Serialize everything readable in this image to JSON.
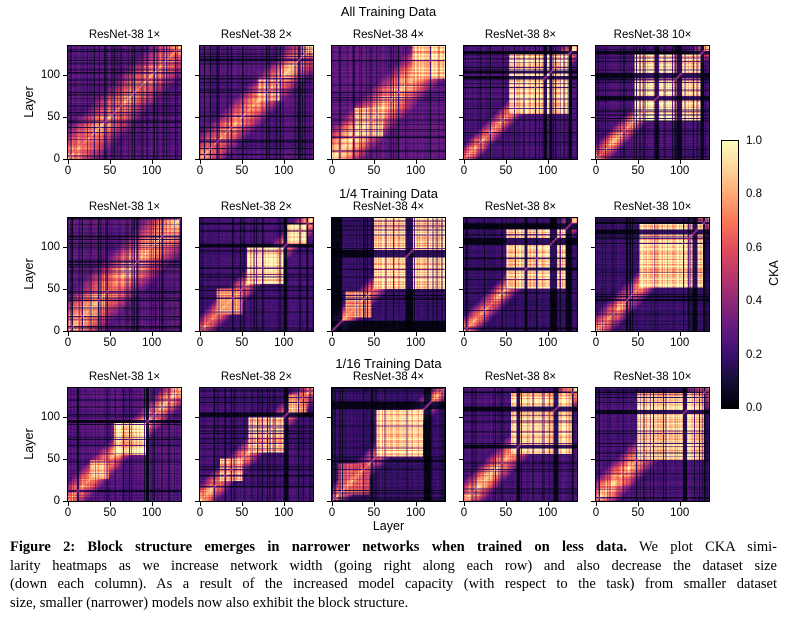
{
  "figure": {
    "row_titles": [
      "All Training Data",
      "1/4 Training Data",
      "1/16 Training Data"
    ],
    "col_titles": [
      "ResNet-38 1×",
      "ResNet-38 2×",
      "ResNet-38 4×",
      "ResNet-38 8×",
      "ResNet-38 10×"
    ],
    "x_axis_label": "Layer",
    "y_axis_label": "Layer",
    "x_ticks": [
      0,
      50,
      100
    ],
    "y_ticks": [
      0,
      50,
      100
    ],
    "n_layers": 135,
    "colorbar": {
      "label": "CKA",
      "ticks": [
        "1.0",
        "0.8",
        "0.6",
        "0.4",
        "0.2",
        "0.0"
      ],
      "min": 0.0,
      "max": 1.0,
      "colormap": "magma",
      "stops": [
        "#000004",
        "#140e36",
        "#3b0f70",
        "#651a80",
        "#8f2878",
        "#bb376b",
        "#e24d5b",
        "#f97858",
        "#fea873",
        "#fed69c",
        "#fcfdbf"
      ]
    }
  },
  "chart_data": [
    {
      "type": "heatmap",
      "row_group": "All Training Data",
      "title": "ResNet-38 1×",
      "x_label": "Layer",
      "y_label": "Layer",
      "x_range": [
        0,
        135
      ],
      "y_range": [
        0,
        135
      ],
      "cka_range": [
        0,
        1
      ],
      "base_cka": 0.3,
      "diag_halo": {
        "sigma": 28,
        "amp": 0.78
      },
      "high_blocks": [
        [
          126,
          134,
          0.9
        ]
      ],
      "dark_layer_bands": [],
      "bright_lines": [],
      "dark_line_freq": 0.14,
      "seed": 11
    },
    {
      "type": "heatmap",
      "row_group": "All Training Data",
      "title": "ResNet-38 2×",
      "x_label": "Layer",
      "y_label": "Layer",
      "x_range": [
        0,
        135
      ],
      "y_range": [
        0,
        135
      ],
      "cka_range": [
        0,
        1
      ],
      "base_cka": 0.28,
      "diag_halo": {
        "sigma": 22,
        "amp": 0.8
      },
      "high_blocks": [
        [
          70,
          96,
          0.9
        ],
        [
          126,
          134,
          0.9
        ]
      ],
      "dark_layer_bands": [],
      "bright_lines": [],
      "dark_line_freq": 0.12,
      "seed": 22
    },
    {
      "type": "heatmap",
      "row_group": "All Training Data",
      "title": "ResNet-38 4×",
      "x_label": "Layer",
      "y_label": "Layer",
      "x_range": [
        0,
        135
      ],
      "y_range": [
        0,
        135
      ],
      "cka_range": [
        0,
        1
      ],
      "base_cka": 0.3,
      "diag_halo": {
        "sigma": 26,
        "amp": 0.88
      },
      "high_blocks": [
        [
          26,
          60,
          0.85
        ],
        [
          96,
          134,
          0.95
        ]
      ],
      "dark_layer_bands": [],
      "bright_lines": [],
      "dark_line_freq": 0.1,
      "seed": 33
    },
    {
      "type": "heatmap",
      "row_group": "All Training Data",
      "title": "ResNet-38 8×",
      "x_label": "Layer",
      "y_label": "Layer",
      "x_range": [
        0,
        135
      ],
      "y_range": [
        0,
        135
      ],
      "cka_range": [
        0,
        1
      ],
      "base_cka": 0.26,
      "diag_halo": {
        "sigma": 12,
        "amp": 0.8
      },
      "high_blocks": [
        [
          54,
          124,
          1.0
        ],
        [
          129,
          134,
          1.0
        ]
      ],
      "dark_layer_bands": [
        [
          95,
          98
        ],
        [
          102,
          104
        ],
        [
          125,
          128
        ]
      ],
      "bright_lines": [
        100
      ],
      "dark_line_freq": 0.13,
      "seed": 44
    },
    {
      "type": "heatmap",
      "row_group": "All Training Data",
      "title": "ResNet-38 10×",
      "x_label": "Layer",
      "y_label": "Layer",
      "x_range": [
        0,
        135
      ],
      "y_range": [
        0,
        135
      ],
      "cka_range": [
        0,
        1
      ],
      "base_cka": 0.26,
      "diag_halo": {
        "sigma": 12,
        "amp": 0.8
      },
      "high_blocks": [
        [
          46,
          124,
          1.0
        ],
        [
          129,
          134,
          1.0
        ]
      ],
      "dark_layer_bands": [
        [
          70,
          73
        ],
        [
          97,
          101
        ],
        [
          125,
          128
        ]
      ],
      "bright_lines": [],
      "dark_line_freq": 0.13,
      "seed": 55
    },
    {
      "type": "heatmap",
      "row_group": "1/4 Training Data",
      "title": "ResNet-38 1×",
      "x_label": "Layer",
      "y_label": "Layer",
      "x_range": [
        0,
        135
      ],
      "y_range": [
        0,
        135
      ],
      "cka_range": [
        0,
        1
      ],
      "base_cka": 0.3,
      "diag_halo": {
        "sigma": 30,
        "amp": 0.85
      },
      "high_blocks": [
        [
          124,
          134,
          0.85
        ]
      ],
      "dark_layer_bands": [],
      "bright_lines": [],
      "dark_line_freq": 0.14,
      "seed": 66
    },
    {
      "type": "heatmap",
      "row_group": "1/4 Training Data",
      "title": "ResNet-38 2×",
      "x_label": "Layer",
      "y_label": "Layer",
      "x_range": [
        0,
        135
      ],
      "y_range": [
        0,
        135
      ],
      "cka_range": [
        0,
        1
      ],
      "base_cka": 0.24,
      "diag_halo": {
        "sigma": 13,
        "amp": 0.8
      },
      "high_blocks": [
        [
          20,
          50,
          0.85
        ],
        [
          56,
          99,
          1.0
        ],
        [
          104,
          126,
          0.95
        ],
        [
          129,
          134,
          0.9
        ]
      ],
      "dark_layer_bands": [
        [
          100,
          103
        ],
        [
          127,
          128
        ]
      ],
      "bright_lines": [],
      "dark_line_freq": 0.12,
      "seed": 77
    },
    {
      "type": "heatmap",
      "row_group": "1/4 Training Data",
      "title": "ResNet-38 4×",
      "x_label": "Layer",
      "y_label": "Layer",
      "x_range": [
        0,
        135
      ],
      "y_range": [
        0,
        135
      ],
      "cka_range": [
        0,
        1
      ],
      "base_cka": 0.21,
      "diag_halo": {
        "sigma": 12,
        "amp": 0.78
      },
      "high_blocks": [
        [
          16,
          46,
          0.8
        ],
        [
          50,
          134,
          1.0
        ]
      ],
      "dark_layer_bands": [
        [
          0,
          11
        ],
        [
          88,
          96
        ]
      ],
      "bright_lines": [],
      "dark_line_freq": 0.12,
      "seed": 88
    },
    {
      "type": "heatmap",
      "row_group": "1/4 Training Data",
      "title": "ResNet-38 8×",
      "x_label": "Layer",
      "y_label": "Layer",
      "x_range": [
        0,
        135
      ],
      "y_range": [
        0,
        135
      ],
      "cka_range": [
        0,
        1
      ],
      "base_cka": 0.21,
      "diag_halo": {
        "sigma": 12,
        "amp": 0.78
      },
      "high_blocks": [
        [
          50,
          121,
          1.0
        ],
        [
          128,
          134,
          0.95
        ]
      ],
      "dark_layer_bands": [
        [
          72,
          75
        ],
        [
          103,
          110
        ],
        [
          122,
          127
        ]
      ],
      "bright_lines": [],
      "dark_line_freq": 0.12,
      "seed": 99
    },
    {
      "type": "heatmap",
      "row_group": "1/4 Training Data",
      "title": "ResNet-38 10×",
      "x_label": "Layer",
      "y_label": "Layer",
      "x_range": [
        0,
        135
      ],
      "y_range": [
        0,
        135
      ],
      "cka_range": [
        0,
        1
      ],
      "base_cka": 0.22,
      "diag_halo": {
        "sigma": 14,
        "amp": 0.8
      },
      "high_blocks": [
        [
          52,
          127,
          1.0
        ],
        [
          130,
          134,
          0.95
        ]
      ],
      "dark_layer_bands": [
        [
          115,
          120
        ],
        [
          128,
          129
        ]
      ],
      "bright_lines": [],
      "dark_line_freq": 0.12,
      "seed": 111
    },
    {
      "type": "heatmap",
      "row_group": "1/16 Training Data",
      "title": "ResNet-38 1×",
      "x_label": "Layer",
      "y_label": "Layer",
      "x_range": [
        0,
        135
      ],
      "y_range": [
        0,
        135
      ],
      "cka_range": [
        0,
        1
      ],
      "base_cka": 0.28,
      "diag_halo": {
        "sigma": 16,
        "amp": 0.8
      },
      "high_blocks": [
        [
          26,
          48,
          0.85
        ],
        [
          55,
          92,
          1.0
        ],
        [
          126,
          134,
          0.8
        ]
      ],
      "dark_layer_bands": [
        [
          93,
          96
        ]
      ],
      "bright_lines": [
        97
      ],
      "dark_line_freq": 0.13,
      "seed": 122
    },
    {
      "type": "heatmap",
      "row_group": "1/16 Training Data",
      "title": "ResNet-38 2×",
      "x_label": "Layer",
      "y_label": "Layer",
      "x_range": [
        0,
        135
      ],
      "y_range": [
        0,
        135
      ],
      "cka_range": [
        0,
        1
      ],
      "base_cka": 0.25,
      "diag_halo": {
        "sigma": 14,
        "amp": 0.8
      },
      "high_blocks": [
        [
          24,
          50,
          0.9
        ],
        [
          58,
          100,
          1.0
        ],
        [
          106,
          126,
          0.88
        ],
        [
          129,
          134,
          0.9
        ]
      ],
      "dark_layer_bands": [
        [
          101,
          105
        ]
      ],
      "bright_lines": [],
      "dark_line_freq": 0.13,
      "seed": 133
    },
    {
      "type": "heatmap",
      "row_group": "1/16 Training Data",
      "title": "ResNet-38 4×",
      "x_label": "Layer",
      "y_label": "Layer",
      "x_range": [
        0,
        135
      ],
      "y_range": [
        0,
        135
      ],
      "cka_range": [
        0,
        1
      ],
      "base_cka": 0.21,
      "diag_halo": {
        "sigma": 12,
        "amp": 0.8
      },
      "high_blocks": [
        [
          8,
          44,
          0.68
        ],
        [
          52,
          108,
          1.0
        ],
        [
          130,
          134,
          0.9
        ]
      ],
      "dark_layer_bands": [
        [
          110,
          118
        ]
      ],
      "bright_lines": [],
      "dark_line_freq": 0.12,
      "seed": 144
    },
    {
      "type": "heatmap",
      "row_group": "1/16 Training Data",
      "title": "ResNet-38 8×",
      "x_label": "Layer",
      "y_label": "Layer",
      "x_range": [
        0,
        135
      ],
      "y_range": [
        0,
        135
      ],
      "cka_range": [
        0,
        1
      ],
      "base_cka": 0.25,
      "diag_halo": {
        "sigma": 16,
        "amp": 0.85
      },
      "high_blocks": [
        [
          56,
          128,
          1.0
        ],
        [
          131,
          134,
          0.9
        ]
      ],
      "dark_layer_bands": [
        [
          63,
          66
        ],
        [
          107,
          112
        ],
        [
          129,
          130
        ]
      ],
      "bright_lines": [],
      "dark_line_freq": 0.12,
      "seed": 155
    },
    {
      "type": "heatmap",
      "row_group": "1/16 Training Data",
      "title": "ResNet-38 10×",
      "x_label": "Layer",
      "y_label": "Layer",
      "x_range": [
        0,
        135
      ],
      "y_range": [
        0,
        135
      ],
      "cka_range": [
        0,
        1
      ],
      "base_cka": 0.25,
      "diag_halo": {
        "sigma": 18,
        "amp": 0.85
      },
      "high_blocks": [
        [
          48,
          128,
          1.0
        ],
        [
          131,
          134,
          0.9
        ]
      ],
      "dark_layer_bands": [
        [
          104,
          108
        ],
        [
          129,
          130
        ]
      ],
      "bright_lines": [],
      "dark_line_freq": 0.12,
      "seed": 166
    }
  ],
  "caption": {
    "label_bold": "Figure 2: Block structure emerges in narrower networks when trained on less data.",
    "line1_rest": " We plot CKA simi-",
    "line2": "larity heatmaps as we increase network width (going right along each row) and also decrease the dataset size",
    "line3": "(down each column). As a result of the increased model capacity (with respect to the task) from smaller dataset",
    "line4": "size, smaller (narrower) models now also exhibit the block structure."
  }
}
